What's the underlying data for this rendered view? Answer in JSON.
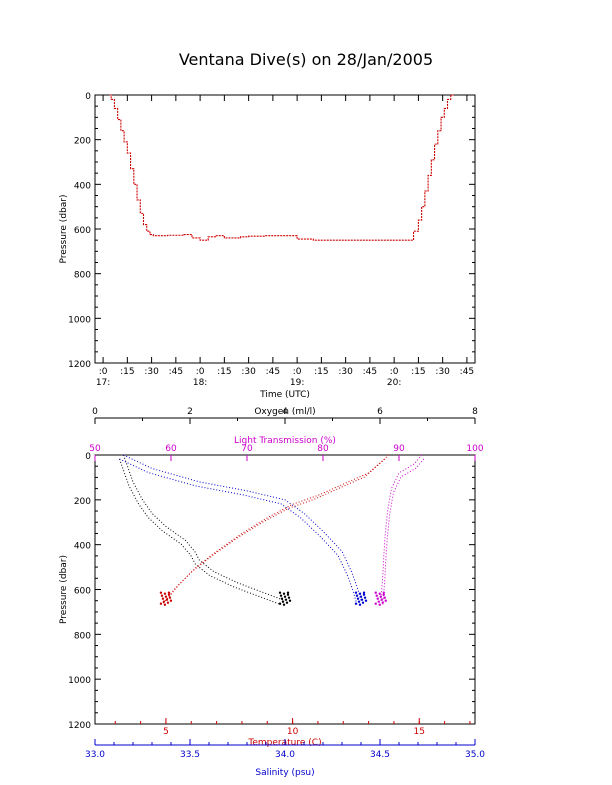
{
  "title": "Ventana Dive(s) on 28/Jan/2005",
  "colors": {
    "axis": "#000000",
    "trace": "#cc0000",
    "oxygen": "#000000",
    "light_transmission": "#cc00cc",
    "temperature": "#cc0000",
    "salinity": "#0000cc"
  },
  "chart_data": [
    {
      "type": "line",
      "xlabel": "Time (UTC)",
      "ylabel": "Pressure (dbar)",
      "ylim": [
        1200,
        0
      ],
      "xlim": [
        "16:55",
        "20:50"
      ],
      "y_ticks": [
        "0",
        "200",
        "400",
        "600",
        "800",
        "1000",
        "1200"
      ],
      "x_ticks": [
        ":0",
        ":15",
        ":30",
        ":45",
        ":0",
        ":15",
        ":30",
        ":45",
        ":0",
        ":15",
        ":30",
        ":45",
        ":0",
        ":15",
        ":30",
        ":45"
      ],
      "hour_labels": [
        "17:",
        "18:",
        "19:",
        "20:"
      ],
      "series": [
        {
          "x": [
            "17:04",
            "17:05",
            "17:07",
            "17:09",
            "17:11",
            "17:13",
            "17:15",
            "17:17",
            "17:19",
            "17:21",
            "17:23",
            "17:25",
            "17:27",
            "17:29",
            "17:31",
            "17:40",
            "17:50",
            "17:55",
            "18:00",
            "18:05",
            "18:10",
            "18:15",
            "18:20",
            "18:25",
            "18:30",
            "18:40",
            "18:50",
            "19:00",
            "19:10",
            "19:30",
            "19:50",
            "20:00",
            "20:10",
            "20:12",
            "20:15",
            "20:17",
            "20:19",
            "20:21",
            "20:23",
            "20:25",
            "20:27",
            "20:29",
            "20:31",
            "20:33",
            "20:35",
            "20:37"
          ],
          "y": [
            0,
            20,
            60,
            110,
            160,
            210,
            260,
            330,
            400,
            470,
            530,
            580,
            610,
            625,
            630,
            628,
            625,
            640,
            650,
            635,
            630,
            640,
            640,
            635,
            632,
            630,
            630,
            645,
            650,
            650,
            650,
            650,
            650,
            610,
            560,
            500,
            430,
            360,
            290,
            220,
            160,
            100,
            60,
            20,
            0,
            0
          ]
        }
      ]
    },
    {
      "type": "scatter",
      "ylabel": "Pressure (dbar)",
      "ylim": [
        1200,
        0
      ],
      "y_ticks": [
        "0",
        "200",
        "400",
        "600",
        "800",
        "1000",
        "1200"
      ],
      "axes": [
        {
          "name": "Oxygen (ml/l)",
          "xlim": [
            0,
            8
          ],
          "ticks": [
            "0",
            "2",
            "4",
            "6",
            "8"
          ],
          "series": [
            {
              "name": "Oxygen (ml/l)",
              "x": [
                0.6,
                0.7,
                0.8,
                1.0,
                1.2,
                1.5,
                1.9,
                2.1,
                2.2,
                2.5,
                3.0,
                3.5,
                4.0
              ],
              "y": [
                0,
                60,
                120,
                200,
                260,
                320,
                380,
                430,
                470,
                520,
                570,
                610,
                650
              ]
            }
          ]
        },
        {
          "name": "Light Transmission (%)",
          "xlim": [
            50,
            100
          ],
          "ticks": [
            "50",
            "60",
            "70",
            "80",
            "90",
            "100"
          ],
          "series": [
            {
              "name": "Light Transmission (%)",
              "x": [
                93,
                92,
                90,
                89,
                88.5,
                88.2,
                88,
                87.9,
                87.8,
                87.7,
                87.6
              ],
              "y": [
                0,
                40,
                80,
                150,
                250,
                350,
                450,
                520,
                570,
                610,
                650
              ]
            }
          ]
        },
        {
          "name": "Temperature (C)",
          "xlim": [
            2.2,
            17.2
          ],
          "ticks": [
            "5",
            "10",
            "15"
          ],
          "series": [
            {
              "name": "Temperature (C)",
              "x": [
                13.8,
                13.0,
                12.0,
                11.0,
                10.0,
                9.0,
                8.0,
                7.0,
                6.2,
                5.5,
                5.0
              ],
              "y": [
                0,
                80,
                130,
                180,
                220,
                280,
                350,
                430,
                500,
                580,
                650
              ]
            }
          ]
        },
        {
          "name": "Salinity (psu)",
          "xlim": [
            33.0,
            35.0
          ],
          "ticks": [
            "33.0",
            "33.5",
            "34.0",
            "34.5",
            "35.0"
          ],
          "series": [
            {
              "name": "Salinity (psu)",
              "x": [
                33.15,
                33.3,
                33.55,
                33.8,
                34.0,
                34.1,
                34.2,
                34.3,
                34.35,
                34.38,
                34.4
              ],
              "y": [
                0,
                60,
                120,
                160,
                200,
                260,
                340,
                430,
                520,
                590,
                650
              ]
            }
          ]
        }
      ]
    }
  ]
}
